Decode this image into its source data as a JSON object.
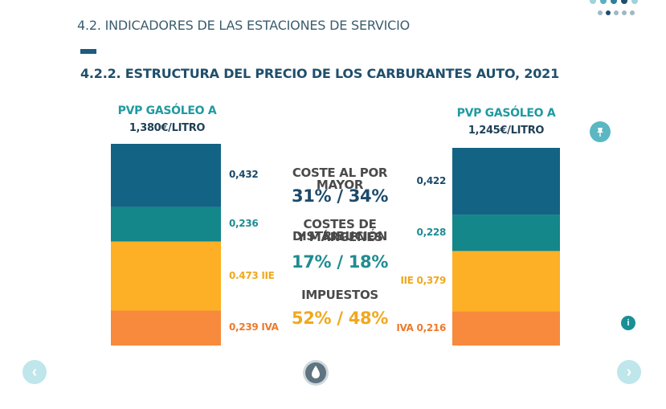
{
  "header": {
    "section_title": "4.2. INDICADORES DE LAS ESTACIONES DE SERVICIO",
    "chart_title": "4.2.2. ESTRUCTURA DEL PRECIO DE LOS CARBURANTES AUTO, 2021"
  },
  "colors": {
    "coste": "#136385",
    "distribucion": "#13878a",
    "iie": "#fdaf26",
    "iva": "#f78a3c",
    "label_dark": "#1b4a6b",
    "label_teal": "#1f8c92",
    "label_yellow": "#f0a81e",
    "label_orange": "#ee7a2a"
  },
  "center": {
    "coste_heading": "COSTE AL POR MAYOR",
    "coste_value": "31% / 34%",
    "dist_heading_line1": "COSTES DE DISTRIBUCIÓN",
    "dist_heading_line2": "Y MÁRGENES",
    "dist_value": "17% / 18%",
    "tax_heading": "IMPUESTOS",
    "tax_value": "52% / 48%"
  },
  "chart_data": {
    "type": "bar",
    "stacked": true,
    "categories": [
      "PVP GASÓLEO A 1,380€/LITRO",
      "PVP GASÓLEO A 1,245€/LITRO"
    ],
    "bars": [
      {
        "title": "PVP GASÓLEO A",
        "price": "1,380€/LITRO",
        "total": 1.38,
        "segments": [
          {
            "key": "coste",
            "value": 0.432,
            "label": "0,432"
          },
          {
            "key": "distribucion",
            "value": 0.236,
            "label": "0,236"
          },
          {
            "key": "iie",
            "value": 0.473,
            "label": "0.473 IIE"
          },
          {
            "key": "iva",
            "value": 0.239,
            "label": "0,239 IVA"
          }
        ]
      },
      {
        "title": "PVP GASÓLEO A",
        "price": "1,245€/LITRO",
        "total": 1.245,
        "segments": [
          {
            "key": "coste",
            "value": 0.422,
            "label": "0,422"
          },
          {
            "key": "distribucion",
            "value": 0.228,
            "label": "0,228"
          },
          {
            "key": "iie",
            "value": 0.379,
            "label": "IIE 0,379"
          },
          {
            "key": "iva",
            "value": 0.216,
            "label": "IVA 0,216"
          }
        ]
      }
    ]
  },
  "nav": {
    "prev_icon": "chevron-left-icon",
    "next_icon": "chevron-right-icon",
    "pin_icon": "pin-icon",
    "info_icon": "info-icon",
    "drop_icon": "water-drop-icon",
    "info_glyph": "i",
    "prev_glyph": "‹",
    "next_glyph": "›"
  },
  "pagination": {
    "top_dots": 5,
    "bottom_dots": 5
  }
}
